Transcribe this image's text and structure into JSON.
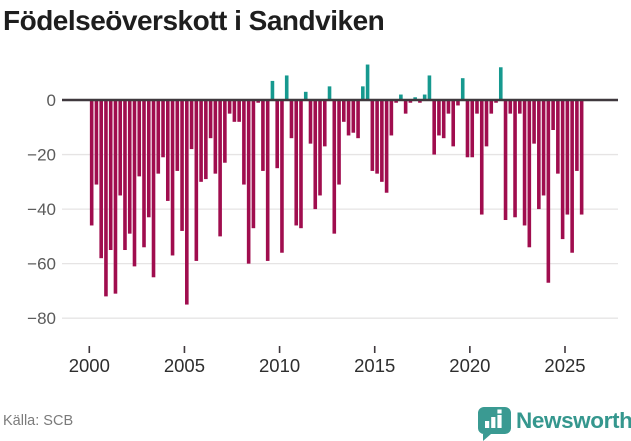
{
  "title": "Födelseöverskott i Sandviken",
  "source": {
    "label": "Källa: SCB"
  },
  "brand": {
    "name": "Newsworthy",
    "color": "#35978e",
    "icon": "bar-chart-speech-bubble-icon"
  },
  "colors": {
    "positive": "#16998f",
    "negative": "#a00d4e",
    "axis": "#3f383d",
    "grid": "#e6e4e4",
    "y_label": "#5a5a5a",
    "x_label": "#2e2e2e",
    "title": "#1e1e1e",
    "source_text": "#7b7b7b"
  },
  "chart_data": {
    "type": "bar",
    "title": "Födelseöverskott i Sandviken",
    "x_period": "quarterly",
    "x_start": "2000Q1",
    "x_end": "2025Q4",
    "x_ticks": [
      "2000",
      "2005",
      "2010",
      "2015",
      "2020",
      "2025"
    ],
    "y_ticks": [
      0,
      -20,
      -40,
      -60,
      -80
    ],
    "y_tick_labels": [
      "0",
      "−20",
      "−40",
      "−60",
      "−80"
    ],
    "ylim": [
      -85,
      16
    ],
    "grid": "horizontal",
    "legend": "none",
    "series": [
      {
        "name": "Födelseöverskott",
        "values": [
          -46,
          -31,
          -58,
          -72,
          -55,
          -71,
          -35,
          -55,
          -49,
          -61,
          -28,
          -54,
          -43,
          -65,
          -27,
          -21,
          -37,
          -57,
          -26,
          -48,
          -75,
          -18,
          -59,
          -30,
          -29,
          -14,
          -27,
          -50,
          -23,
          -5,
          -8,
          -8,
          -31,
          -60,
          -47,
          -1,
          -26,
          -59,
          7,
          -25,
          -56,
          9,
          -14,
          -46,
          -47,
          3,
          -16,
          -40,
          -35,
          -17,
          5,
          -49,
          -31,
          -8,
          -13,
          -12,
          -14,
          5,
          13,
          -26,
          -27,
          -30,
          -34,
          -13,
          -1,
          2,
          -5,
          -1,
          1,
          -1,
          2,
          9,
          -20,
          -13,
          -14,
          -5,
          -17,
          -2,
          8,
          -21,
          -21,
          -5,
          -42,
          -17,
          -5,
          -1,
          12,
          -44,
          -5,
          -43,
          -5,
          -46,
          -54,
          -16,
          -40,
          -35,
          -67,
          -11,
          -27,
          -51,
          -42,
          -56,
          -26,
          -42
        ]
      }
    ]
  }
}
